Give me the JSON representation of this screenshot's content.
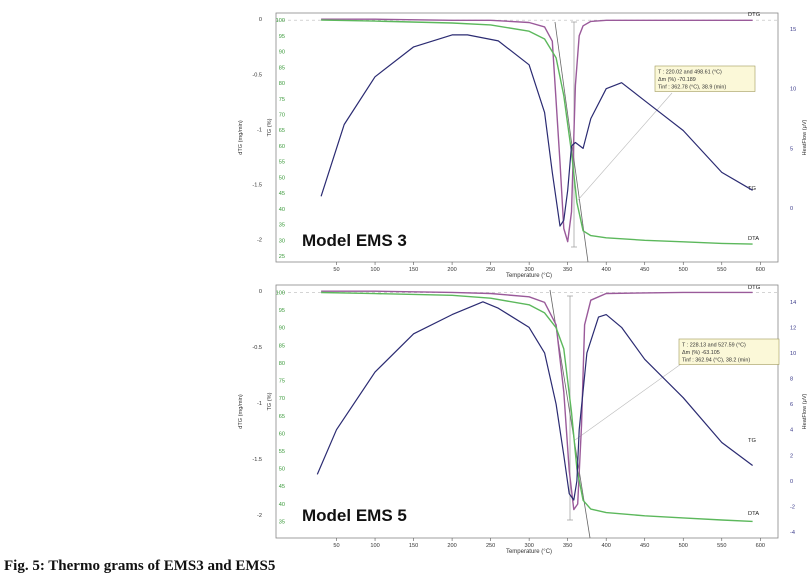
{
  "caption": "Fig. 5: Thermo grams of EMS3 and EMS5",
  "colors": {
    "tg": "#5cb85c",
    "dta": "#2b2b72",
    "dtg": "#9a5a9a",
    "axis_green": "#3a9a3a",
    "axis_blue": "#3a3a8a",
    "box_fill": "#fbf8d8",
    "box_stroke": "#a09a5a"
  },
  "chart_data": [
    {
      "type": "line",
      "title": "Model EMS 3",
      "xlabel": "Temperature (°C)",
      "x_ticks": [
        50,
        100,
        150,
        200,
        250,
        300,
        350,
        400,
        450,
        500,
        550,
        600
      ],
      "xlim": [
        0,
        610
      ],
      "axes": {
        "dtg": {
          "label": "dTG (mg/min)",
          "ticks": [
            0,
            -0.5,
            -1,
            -1.5,
            -2
          ],
          "range": [
            -2.15,
            0.02
          ]
        },
        "tg": {
          "label": "TG (%)",
          "ticks": [
            100,
            95,
            90,
            85,
            80,
            75,
            70,
            65,
            60,
            55,
            50,
            45,
            40,
            35,
            30,
            25
          ],
          "range": [
            25,
            101
          ]
        },
        "heatflow": {
          "label": "HeatFlow (μV)",
          "ticks": [
            15,
            10,
            5,
            0
          ],
          "range": [
            -4,
            16
          ]
        }
      },
      "annotation": {
        "lines": [
          "T : 220.02 and 498.61 (°C)",
          "Δm (%) -70.189",
          "Tinf : 362.78 (°C), 38.9 (min)"
        ]
      },
      "series": [
        {
          "name": "DTG",
          "axis": "dtg",
          "x": [
            30,
            100,
            200,
            250,
            300,
            320,
            330,
            340,
            345,
            350,
            355,
            360,
            365,
            370,
            380,
            400,
            500,
            590
          ],
          "y": [
            0,
            0,
            -0.01,
            -0.01,
            -0.03,
            -0.07,
            -0.2,
            -1.3,
            -1.9,
            -2.02,
            -1.75,
            -0.6,
            -0.15,
            -0.06,
            -0.02,
            -0.01,
            -0.01,
            -0.01
          ]
        },
        {
          "name": "TG",
          "axis": "tg",
          "x": [
            30,
            100,
            200,
            250,
            300,
            320,
            335,
            345,
            355,
            362,
            370,
            380,
            400,
            450,
            500,
            550,
            590
          ],
          "y": [
            100,
            99.7,
            99.1,
            98.5,
            96.5,
            94,
            88,
            76,
            58,
            42,
            33,
            31.5,
            30.8,
            30,
            29.5,
            29,
            28.8
          ]
        },
        {
          "name": "DTA",
          "axis": "heatflow",
          "x": [
            30,
            60,
            100,
            150,
            200,
            220,
            260,
            300,
            320,
            330,
            340,
            345,
            350,
            355,
            360,
            370,
            380,
            400,
            420,
            450,
            500,
            550,
            590
          ],
          "y": [
            1,
            7,
            11,
            13.5,
            14.5,
            14.5,
            14,
            12,
            8,
            3,
            -1.5,
            -1,
            1.5,
            5.2,
            5.5,
            5,
            7.5,
            10,
            10.5,
            9,
            6.5,
            3,
            1.5
          ]
        }
      ]
    },
    {
      "type": "line",
      "title": "Model EMS 5",
      "xlabel": "Temperature (°C)",
      "x_ticks": [
        50,
        100,
        150,
        200,
        250,
        300,
        350,
        400,
        450,
        500,
        550,
        600
      ],
      "xlim": [
        0,
        610
      ],
      "axes": {
        "dtg": {
          "label": "dTG (mg/min)",
          "ticks": [
            0,
            -0.5,
            -1,
            -1.5,
            -2
          ],
          "range": [
            -2.15,
            0.02
          ]
        },
        "tg": {
          "label": "TG (%)",
          "ticks": [
            100,
            95,
            90,
            85,
            80,
            75,
            70,
            65,
            60,
            55,
            50,
            45,
            40,
            35
          ],
          "range": [
            32,
            101
          ]
        },
        "heatflow": {
          "label": "HeatFlow (μV)",
          "ticks": [
            14,
            12,
            10,
            8,
            6,
            4,
            2,
            0,
            -2,
            -4
          ],
          "range": [
            -4,
            15
          ]
        }
      },
      "annotation": {
        "lines": [
          "T : 228.13 and 527.59 (°C)",
          "Δm (%) -63.105",
          "Tinf : 362.94 (°C), 38.2 (min)"
        ]
      },
      "series": [
        {
          "name": "DTG",
          "axis": "dtg",
          "x": [
            30,
            100,
            200,
            250,
            300,
            320,
            335,
            345,
            352,
            358,
            363,
            368,
            372,
            380,
            400,
            500,
            590
          ],
          "y": [
            0,
            0,
            -0.01,
            -0.02,
            -0.05,
            -0.1,
            -0.3,
            -0.9,
            -1.6,
            -1.95,
            -1.9,
            -1.2,
            -0.3,
            -0.08,
            -0.02,
            -0.01,
            -0.01
          ]
        },
        {
          "name": "TG",
          "axis": "tg",
          "x": [
            30,
            100,
            200,
            250,
            300,
            320,
            335,
            345,
            355,
            362,
            370,
            380,
            400,
            450,
            500,
            550,
            590
          ],
          "y": [
            100,
            99.7,
            99.2,
            98.4,
            96.5,
            94.2,
            90,
            84,
            66,
            50,
            41,
            38.5,
            37.5,
            36.6,
            36,
            35.4,
            35
          ]
        },
        {
          "name": "DTA",
          "axis": "heatflow",
          "x": [
            25,
            50,
            100,
            150,
            200,
            240,
            260,
            300,
            320,
            335,
            345,
            352,
            358,
            362,
            365,
            375,
            390,
            400,
            420,
            450,
            500,
            550,
            590
          ],
          "y": [
            0.5,
            4,
            8.5,
            11.5,
            13,
            14,
            13.5,
            12,
            10,
            6,
            2,
            -1,
            -1.5,
            0,
            4,
            10,
            12.8,
            13,
            12,
            9.5,
            6.5,
            3,
            1.2
          ]
        }
      ]
    }
  ]
}
